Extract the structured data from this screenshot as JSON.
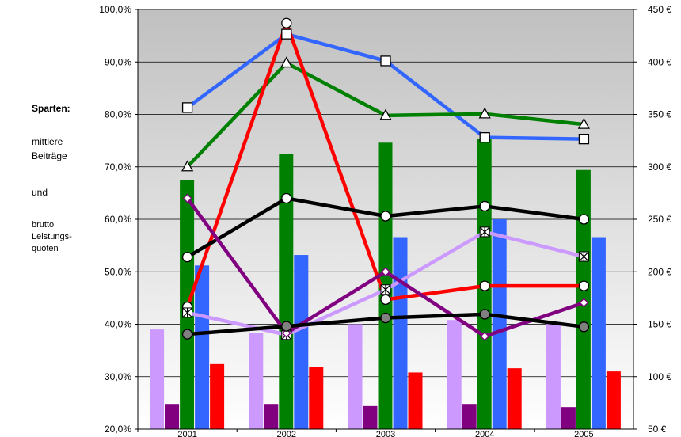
{
  "legend_panel": {
    "title": "Sparten:",
    "line1": "mittlere",
    "line2": "Beiträge",
    "line3": "und",
    "line4": "brutto",
    "line5": "Leistungs-",
    "line6": "quoten"
  },
  "chart_data": {
    "type": "bar+line",
    "categories": [
      "2001",
      "2002",
      "2003",
      "2004",
      "2005"
    ],
    "left_axis": {
      "range": [
        20,
        100
      ],
      "ticks": [
        "20,0%",
        "30,0%",
        "40,0%",
        "50,0%",
        "60,0%",
        "70,0%",
        "80,0%",
        "90,0%",
        "100,0%"
      ],
      "tick_values": [
        20,
        30,
        40,
        50,
        60,
        70,
        80,
        90,
        100
      ]
    },
    "right_axis": {
      "range": [
        50,
        450
      ],
      "ticks": [
        "50 €",
        "100 €",
        "150 €",
        "200 €",
        "250 €",
        "300 €",
        "350 €",
        "400 €",
        "450 €"
      ],
      "tick_values": [
        50,
        100,
        150,
        200,
        250,
        300,
        350,
        400,
        450
      ]
    },
    "gridlines": "horizontal",
    "background": "gradient-grey",
    "bar_series": [
      {
        "color": "#cc99ff",
        "values": [
          145,
          142,
          150,
          154,
          151
        ]
      },
      {
        "color": "#800080",
        "values": [
          74,
          74,
          72,
          74,
          71
        ]
      },
      {
        "color": "#008000",
        "values": [
          287,
          312,
          323,
          327,
          297
        ]
      },
      {
        "color": "#3366ff",
        "values": [
          206,
          216,
          233,
          250,
          233
        ]
      },
      {
        "color": "#ff0000",
        "values": [
          112,
          109,
          104,
          108,
          105
        ]
      }
    ],
    "line_series": [
      {
        "color": "#3366ff",
        "marker": "square",
        "values": [
          81.3,
          95.3,
          90.2,
          75.6,
          75.3
        ]
      },
      {
        "color": "#008000",
        "marker": "triangle",
        "values": [
          70.0,
          89.8,
          79.8,
          80.1,
          78.1
        ]
      },
      {
        "color": "#ff0000",
        "marker": "circle-white",
        "values": [
          43.3,
          97.4,
          44.7,
          47.3,
          47.3
        ]
      },
      {
        "color": "#000000",
        "marker": "circle-white",
        "values": [
          52.8,
          64.0,
          60.6,
          62.5,
          60.0
        ]
      },
      {
        "color": "#cc99ff",
        "marker": "asterisk",
        "values": [
          42.2,
          38.0,
          46.6,
          57.6,
          52.9
        ]
      },
      {
        "color": "#800080",
        "marker": "diamond",
        "values": [
          64.0,
          38.3,
          50.0,
          37.7,
          44.1
        ]
      },
      {
        "color": "#000000",
        "marker": "circle-grey",
        "values": [
          38.1,
          39.6,
          41.2,
          41.9,
          39.5
        ]
      }
    ]
  }
}
